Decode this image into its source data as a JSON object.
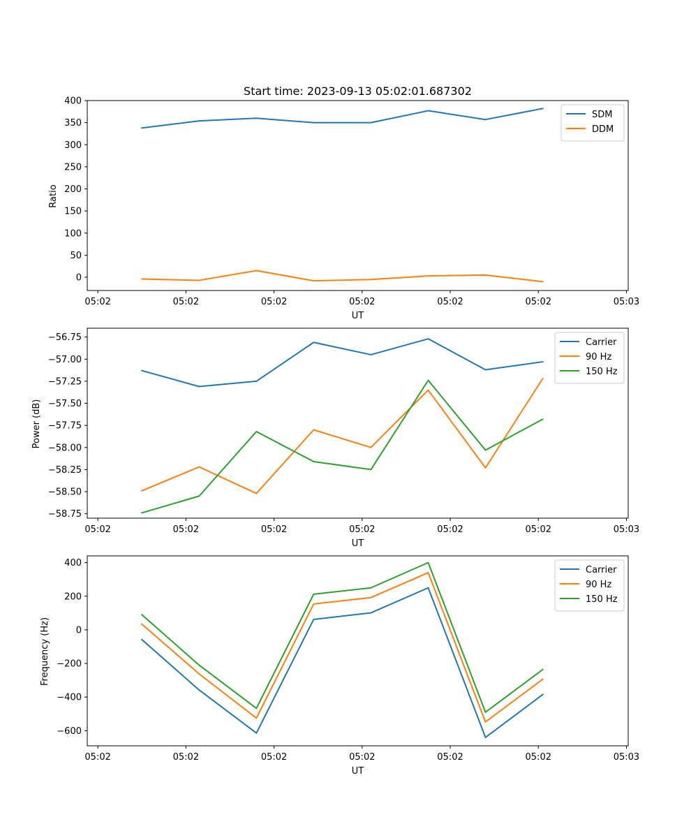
{
  "chart_data": [
    {
      "type": "line",
      "title": "Start time: 2023-09-13 05:02:01.687302",
      "xlabel": "UT",
      "ylabel": "Ratio",
      "x_tick_labels": [
        "05:02",
        "05:02",
        "05:02",
        "05:02",
        "05:02",
        "05:02",
        "05:03"
      ],
      "x": [
        0.5,
        1.15,
        1.8,
        2.45,
        3.1,
        3.75,
        4.4,
        5.05
      ],
      "xlim": [
        -0.12,
        6.02
      ],
      "ylim": [
        -30,
        400
      ],
      "y_ticks": [
        0,
        50,
        100,
        150,
        200,
        250,
        300,
        350,
        400
      ],
      "y_tick_labels": [
        "0",
        "50",
        "100",
        "150",
        "200",
        "250",
        "300",
        "350",
        "400"
      ],
      "legend_position": "top-right",
      "series": [
        {
          "name": "SDM",
          "color": "#1f77b4",
          "values": [
            338,
            354,
            360,
            350,
            350,
            377,
            357,
            382
          ]
        },
        {
          "name": "DDM",
          "color": "#ff7f0e",
          "values": [
            -4,
            -7,
            15,
            -8,
            -5,
            3,
            5,
            -10
          ]
        }
      ]
    },
    {
      "type": "line",
      "title": "",
      "xlabel": "UT",
      "ylabel": "Power (dB)",
      "x_tick_labels": [
        "05:02",
        "05:02",
        "05:02",
        "05:02",
        "05:02",
        "05:02",
        "05:03"
      ],
      "x": [
        0.5,
        1.15,
        1.8,
        2.45,
        3.1,
        3.75,
        4.4,
        5.05
      ],
      "xlim": [
        -0.12,
        6.02
      ],
      "ylim": [
        -58.8,
        -56.65
      ],
      "y_ticks": [
        -58.75,
        -58.5,
        -58.25,
        -58.0,
        -57.75,
        -57.5,
        -57.25,
        -57.0,
        -56.75
      ],
      "y_tick_labels": [
        "−58.75",
        "−58.50",
        "−58.25",
        "−58.00",
        "−57.75",
        "−57.50",
        "−57.25",
        "−57.00",
        "−56.75"
      ],
      "legend_position": "top-right",
      "series": [
        {
          "name": "Carrier",
          "color": "#1f77b4",
          "values": [
            -57.13,
            -57.31,
            -57.25,
            -56.81,
            -56.95,
            -56.77,
            -57.12,
            -57.03
          ]
        },
        {
          "name": "90 Hz",
          "color": "#ff7f0e",
          "values": [
            -58.49,
            -58.22,
            -58.52,
            -57.8,
            -58.0,
            -57.35,
            -58.23,
            -57.22
          ]
        },
        {
          "name": "150 Hz",
          "color": "#2ca02c",
          "values": [
            -58.74,
            -58.55,
            -57.82,
            -58.16,
            -58.25,
            -57.24,
            -58.03,
            -57.68
          ]
        }
      ]
    },
    {
      "type": "line",
      "title": "",
      "xlabel": "UT",
      "ylabel": "Frequency (Hz)",
      "x_tick_labels": [
        "05:02",
        "05:02",
        "05:02",
        "05:02",
        "05:02",
        "05:02",
        "05:03"
      ],
      "x": [
        0.5,
        1.15,
        1.8,
        2.45,
        3.1,
        3.75,
        4.4,
        5.05
      ],
      "xlim": [
        -0.12,
        6.02
      ],
      "ylim": [
        -690,
        440
      ],
      "y_ticks": [
        -600,
        -400,
        -200,
        0,
        200,
        400
      ],
      "y_tick_labels": [
        "−600",
        "−400",
        "−200",
        "0",
        "200",
        "400"
      ],
      "legend_position": "top-right",
      "series": [
        {
          "name": "Carrier",
          "color": "#1f77b4",
          "values": [
            -58,
            -358,
            -614,
            62,
            101,
            250,
            -640,
            -385
          ]
        },
        {
          "name": "90 Hz",
          "color": "#ff7f0e",
          "values": [
            34,
            -262,
            -525,
            154,
            192,
            340,
            -548,
            -294
          ]
        },
        {
          "name": "150 Hz",
          "color": "#2ca02c",
          "values": [
            90,
            -210,
            -467,
            212,
            250,
            400,
            -490,
            -236
          ]
        }
      ]
    }
  ]
}
